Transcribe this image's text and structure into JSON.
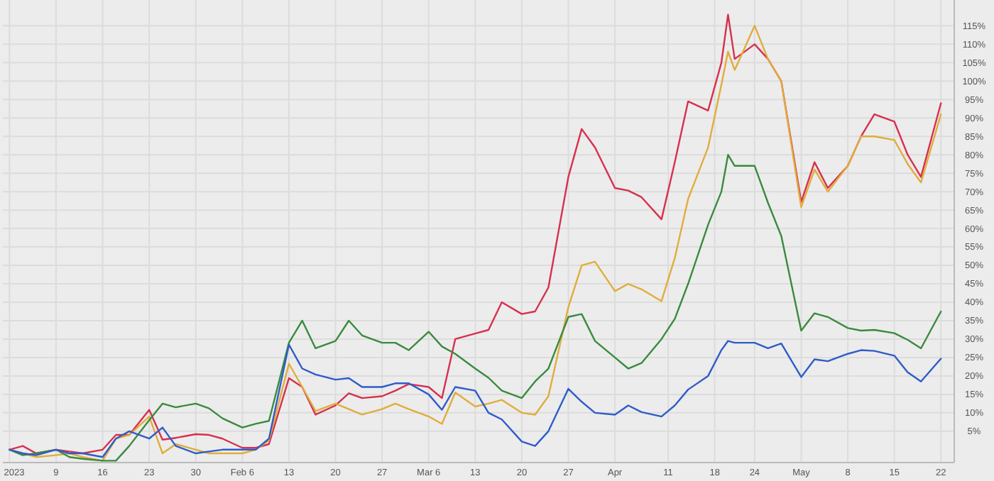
{
  "chart_data": {
    "type": "line",
    "x": [
      "2023-01-02",
      "2023-01-04",
      "2023-01-06",
      "2023-01-09",
      "2023-01-11",
      "2023-01-13",
      "2023-01-16",
      "2023-01-18",
      "2023-01-20",
      "2023-01-23",
      "2023-01-25",
      "2023-01-27",
      "2023-01-30",
      "2023-02-01",
      "2023-02-03",
      "2023-02-06",
      "2023-02-08",
      "2023-02-10",
      "2023-02-13",
      "2023-02-15",
      "2023-02-17",
      "2023-02-20",
      "2023-02-22",
      "2023-02-24",
      "2023-02-27",
      "2023-03-01",
      "2023-03-03",
      "2023-03-06",
      "2023-03-08",
      "2023-03-10",
      "2023-03-13",
      "2023-03-15",
      "2023-03-17",
      "2023-03-20",
      "2023-03-22",
      "2023-03-24",
      "2023-03-27",
      "2023-03-29",
      "2023-03-31",
      "2023-04-03",
      "2023-04-05",
      "2023-04-07",
      "2023-04-10",
      "2023-04-12",
      "2023-04-14",
      "2023-04-17",
      "2023-04-19",
      "2023-04-20",
      "2023-04-21",
      "2023-04-24",
      "2023-04-26",
      "2023-04-28",
      "2023-05-01",
      "2023-05-03",
      "2023-05-05",
      "2023-05-08",
      "2023-05-10",
      "2023-05-12",
      "2023-05-15",
      "2023-05-17",
      "2023-05-19",
      "2023-05-22"
    ],
    "series": [
      {
        "color": "#d6304e",
        "values": [
          0,
          1,
          -1,
          0,
          -0.5,
          -1,
          0,
          4,
          4,
          10.8,
          2.7,
          3.2,
          4.2,
          4,
          3,
          0.5,
          0.5,
          1.5,
          19.4,
          17,
          9.5,
          12,
          15.3,
          14,
          14.5,
          16,
          17.8,
          17,
          14,
          30,
          31.5,
          32.5,
          40,
          36.8,
          37.5,
          44,
          74,
          87,
          82,
          71,
          70.3,
          68.5,
          62.5,
          78,
          94.5,
          92,
          105,
          118,
          106,
          110,
          106,
          100,
          67.2,
          78,
          71,
          77,
          85,
          91,
          89,
          80,
          74,
          94
        ]
      },
      {
        "color": "#e0ad3c",
        "values": [
          0,
          -1,
          -2,
          -1.5,
          -1,
          -2,
          -3,
          3,
          4,
          9,
          -1,
          1.5,
          0,
          -1,
          -1,
          -1,
          0,
          2.5,
          23.3,
          17,
          10.5,
          12.5,
          11,
          9.5,
          11,
          12.5,
          11,
          9,
          7,
          15.5,
          11.7,
          12.5,
          13.5,
          10,
          9.5,
          14.5,
          38.7,
          50,
          51,
          43,
          45,
          43.5,
          40.3,
          52,
          68,
          82,
          99,
          108,
          103,
          115,
          106,
          100,
          65.8,
          76,
          70,
          77,
          85,
          85,
          84,
          77.5,
          72.5,
          91
        ]
      },
      {
        "color": "#3a8a3e",
        "values": [
          0,
          -1.5,
          -1,
          0,
          -2,
          -2.5,
          -3,
          -3,
          1,
          8,
          12.5,
          11.5,
          12.5,
          11.2,
          8.5,
          6,
          7,
          7.8,
          29,
          35,
          27.5,
          29.5,
          35,
          31,
          29,
          29,
          27,
          32,
          28,
          26,
          22,
          19.5,
          16,
          14,
          18.5,
          22,
          36,
          36.8,
          29.5,
          25,
          22,
          23.5,
          30,
          35.5,
          45,
          61,
          70,
          80,
          77,
          77,
          67,
          58,
          32.3,
          37,
          36,
          33,
          32.3,
          32.5,
          31.6,
          29.8,
          27.5,
          37.5
        ]
      },
      {
        "color": "#2f5cc8",
        "values": [
          0,
          -1,
          -1.5,
          0,
          -1,
          -1,
          -2,
          3,
          5,
          3,
          6,
          1,
          -1,
          -0.5,
          0,
          0,
          0,
          3,
          28.5,
          22,
          20.4,
          19,
          19.4,
          17,
          17,
          18,
          18,
          15,
          10.8,
          17,
          16,
          10,
          8.2,
          2.2,
          1,
          5,
          16.5,
          13,
          10,
          9.5,
          12,
          10.2,
          9,
          12,
          16.3,
          20,
          27,
          29.5,
          29,
          29,
          27.5,
          28.8,
          19.7,
          24.5,
          24,
          26,
          27,
          26.8,
          25.5,
          21,
          18.5,
          24.7
        ]
      }
    ],
    "xlim": [
      "2023-01-01",
      "2023-05-24"
    ],
    "xticks": [
      {
        "value": "2023-01-02",
        "label": "2023"
      },
      {
        "value": "2023-01-09",
        "label": "9"
      },
      {
        "value": "2023-01-16",
        "label": "16"
      },
      {
        "value": "2023-01-23",
        "label": "23"
      },
      {
        "value": "2023-01-30",
        "label": "30"
      },
      {
        "value": "2023-02-06",
        "label": "Feb 6"
      },
      {
        "value": "2023-02-13",
        "label": "13"
      },
      {
        "value": "2023-02-20",
        "label": "20"
      },
      {
        "value": "2023-02-27",
        "label": "27"
      },
      {
        "value": "2023-03-06",
        "label": "Mar 6"
      },
      {
        "value": "2023-03-13",
        "label": "13"
      },
      {
        "value": "2023-03-20",
        "label": "20"
      },
      {
        "value": "2023-03-27",
        "label": "27"
      },
      {
        "value": "2023-04-03",
        "label": "Apr"
      },
      {
        "value": "2023-04-11",
        "label": "11"
      },
      {
        "value": "2023-04-18",
        "label": "18"
      },
      {
        "value": "2023-04-24",
        "label": "24"
      },
      {
        "value": "2023-05-01",
        "label": "May"
      },
      {
        "value": "2023-05-08",
        "label": "8"
      },
      {
        "value": "2023-05-15",
        "label": "15"
      },
      {
        "value": "2023-05-22",
        "label": "22"
      }
    ],
    "ylim": [
      -3.5,
      122
    ],
    "yticks": [
      {
        "value": 5,
        "label": "5%"
      },
      {
        "value": 10,
        "label": "10%"
      },
      {
        "value": 15,
        "label": "15%"
      },
      {
        "value": 20,
        "label": "20%"
      },
      {
        "value": 25,
        "label": "25%"
      },
      {
        "value": 30,
        "label": "30%"
      },
      {
        "value": 35,
        "label": "35%"
      },
      {
        "value": 40,
        "label": "40%"
      },
      {
        "value": 45,
        "label": "45%"
      },
      {
        "value": 50,
        "label": "50%"
      },
      {
        "value": 55,
        "label": "55%"
      },
      {
        "value": 60,
        "label": "60%"
      },
      {
        "value": 65,
        "label": "65%"
      },
      {
        "value": 70,
        "label": "70%"
      },
      {
        "value": 75,
        "label": "75%"
      },
      {
        "value": 80,
        "label": "80%"
      },
      {
        "value": 85,
        "label": "85%"
      },
      {
        "value": 90,
        "label": "90%"
      },
      {
        "value": 95,
        "label": "95%"
      },
      {
        "value": 100,
        "label": "100%"
      },
      {
        "value": 105,
        "label": "105%"
      },
      {
        "value": 110,
        "label": "110%"
      },
      {
        "value": 115,
        "label": "115%"
      }
    ],
    "grid": true,
    "marker": "none",
    "line_style": "solid"
  }
}
